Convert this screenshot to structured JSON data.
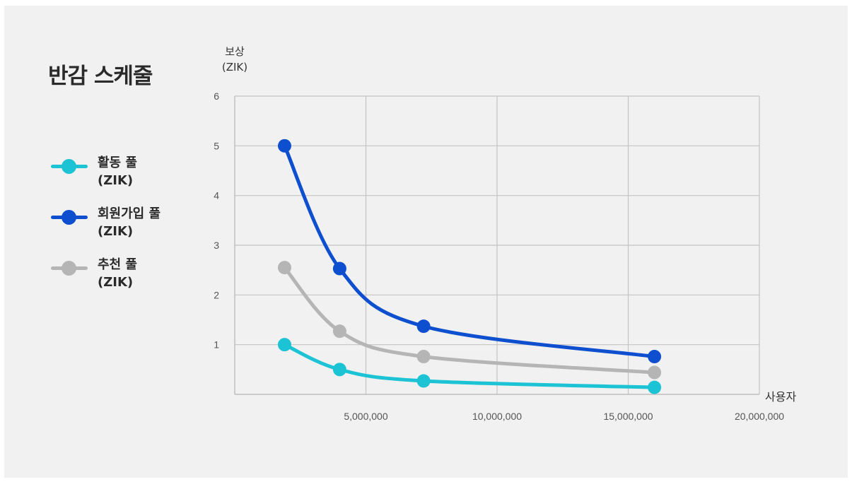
{
  "chart_data": {
    "type": "line",
    "title": "반감 스케줄",
    "ylabel": "보상\n(ZIK)",
    "xlabel": "사용자",
    "xlim": [
      0,
      20000000
    ],
    "ylim": [
      0,
      6
    ],
    "x_ticks": [
      5000000,
      10000000,
      15000000,
      20000000
    ],
    "x_tick_labels": [
      "5,000,000",
      "10,000,000",
      "15,000,000",
      "20,000,000"
    ],
    "y_ticks": [
      1,
      2,
      3,
      4,
      5,
      6
    ],
    "y_tick_labels": [
      "1",
      "2",
      "3",
      "4",
      "5",
      "6"
    ],
    "grid": true,
    "legend_position": "left",
    "series": [
      {
        "name": "활동 풀\n(ZIK)",
        "color": "#1cc3d4",
        "x": [
          1900000,
          4000000,
          7200000,
          16000000
        ],
        "y": [
          1.0,
          0.5,
          0.27,
          0.14
        ]
      },
      {
        "name": "회원가입 풀\n(ZIK)",
        "color": "#0d4fce",
        "x": [
          1900000,
          4000000,
          7200000,
          16000000
        ],
        "y": [
          5.0,
          2.53,
          1.37,
          0.76
        ]
      },
      {
        "name": "추천 풀\n(ZIK)",
        "color": "#b5b5b5",
        "x": [
          1900000,
          4000000,
          7200000,
          16000000
        ],
        "y": [
          2.55,
          1.27,
          0.76,
          0.44
        ]
      }
    ]
  }
}
